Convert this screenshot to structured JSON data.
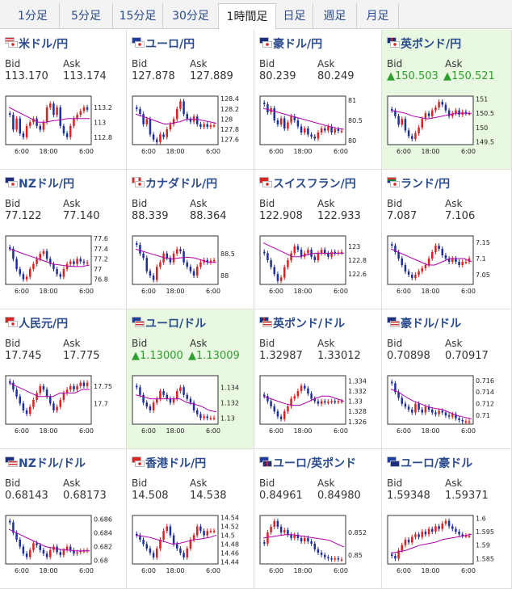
{
  "tabs": [
    {
      "label": "1分足",
      "active": false
    },
    {
      "label": "5分足",
      "active": false
    },
    {
      "label": "15分足",
      "active": false
    },
    {
      "label": "30分足",
      "active": false
    },
    {
      "label": "1時間足",
      "active": true
    },
    {
      "label": "日足",
      "active": false
    },
    {
      "label": "週足",
      "active": false
    },
    {
      "label": "月足",
      "active": false
    }
  ],
  "labels": {
    "bid": "Bid",
    "ask": "Ask"
  },
  "x_labels": [
    "6:00",
    "18:00",
    "6:00"
  ],
  "colors": {
    "up": "#e02020",
    "down": "#1f2f9f",
    "ma": "#b000b0",
    "highlight": "#e9f9e1",
    "link": "#2a4b8d",
    "rise": "#2e9e2e"
  },
  "cells": [
    {
      "pair": "米ドル/円",
      "flags": [
        "us",
        "jp"
      ],
      "bid": "113.170",
      "ask": "113.174",
      "up": false,
      "highlight": false,
      "chart_data": {
        "type": "candlestick",
        "y_ticks": [
          "113.2",
          "113",
          "112.8"
        ],
        "y_range": [
          112.7,
          113.35
        ],
        "closes": [
          113.1,
          112.9,
          113.05,
          112.85,
          112.8,
          112.95,
          113.0,
          113.05,
          112.95,
          112.9,
          113.0,
          113.2,
          113.25,
          113.1,
          113.2,
          112.95,
          112.85,
          112.8,
          112.95,
          113.05,
          113.1,
          113.15,
          113.2,
          113.17
        ],
        "ma": [
          113.2,
          113.15,
          113.1,
          113.05,
          113.0,
          113.0,
          113.02,
          113.03,
          113.05,
          113.05,
          113.05,
          113.05
        ]
      }
    },
    {
      "pair": "ユーロ/円",
      "flags": [
        "eu",
        "jp"
      ],
      "bid": "127.878",
      "ask": "127.889",
      "up": false,
      "highlight": false,
      "chart_data": {
        "type": "candlestick",
        "y_ticks": [
          "128.4",
          "128.2",
          "128",
          "127.8",
          "127.6"
        ],
        "y_range": [
          127.5,
          128.45
        ],
        "closes": [
          128.2,
          128.1,
          127.9,
          128.0,
          127.7,
          127.6,
          127.55,
          127.7,
          127.65,
          127.8,
          127.9,
          128.0,
          128.2,
          128.35,
          128.1,
          128.0,
          127.95,
          128.05,
          127.9,
          127.85,
          127.9,
          127.85,
          127.88,
          127.88
        ],
        "ma": [
          128.1,
          128.05,
          128.0,
          127.95,
          127.9,
          127.92,
          127.95,
          128.0,
          128.0,
          127.98,
          127.95,
          127.92
        ]
      }
    },
    {
      "pair": "豪ドル/円",
      "flags": [
        "au",
        "jp"
      ],
      "bid": "80.239",
      "ask": "80.249",
      "up": false,
      "highlight": false,
      "chart_data": {
        "type": "candlestick",
        "y_ticks": [
          "81",
          "80.5",
          "80"
        ],
        "y_range": [
          79.9,
          81.1
        ],
        "closes": [
          80.9,
          80.7,
          80.8,
          80.5,
          80.4,
          80.55,
          80.3,
          80.45,
          80.6,
          80.5,
          80.35,
          80.2,
          80.3,
          80.15,
          80.1,
          80.05,
          80.2,
          80.3,
          80.25,
          80.35,
          80.2,
          80.28,
          80.24,
          80.24
        ],
        "ma": [
          80.8,
          80.75,
          80.7,
          80.65,
          80.6,
          80.55,
          80.5,
          80.45,
          80.4,
          80.35,
          80.3,
          80.28
        ]
      }
    },
    {
      "pair": "英ポンド/円",
      "flags": [
        "gb",
        "jp"
      ],
      "bid": "▲150.503",
      "ask": "▲150.521",
      "up": true,
      "highlight": true,
      "chart_data": {
        "type": "candlestick",
        "y_ticks": [
          "151",
          "150.5",
          "150",
          "149.5"
        ],
        "y_range": [
          149.4,
          151.1
        ],
        "closes": [
          150.6,
          150.4,
          150.1,
          150.3,
          149.9,
          149.7,
          149.6,
          149.8,
          150.0,
          150.3,
          150.5,
          150.4,
          150.6,
          150.7,
          150.9,
          150.8,
          150.6,
          150.4,
          150.5,
          150.6,
          150.45,
          150.55,
          150.5,
          150.5
        ],
        "ma": [
          150.6,
          150.55,
          150.5,
          150.4,
          150.35,
          150.3,
          150.35,
          150.4,
          150.45,
          150.5,
          150.5,
          150.5
        ]
      }
    },
    {
      "pair": "NZドル/円",
      "flags": [
        "nz",
        "jp"
      ],
      "bid": "77.122",
      "ask": "77.140",
      "up": false,
      "highlight": false,
      "chart_data": {
        "type": "candlestick",
        "y_ticks": [
          "77.6",
          "77.4",
          "77.2",
          "77",
          "76.8"
        ],
        "y_range": [
          76.7,
          77.65
        ],
        "closes": [
          77.4,
          77.2,
          77.0,
          76.9,
          76.8,
          76.85,
          77.0,
          77.1,
          77.2,
          77.3,
          77.35,
          77.2,
          77.1,
          77.0,
          76.9,
          76.85,
          77.0,
          77.1,
          77.15,
          77.1,
          77.2,
          77.15,
          77.12,
          77.13
        ],
        "ma": [
          77.4,
          77.35,
          77.3,
          77.25,
          77.2,
          77.15,
          77.1,
          77.08,
          77.06,
          77.05,
          77.05,
          77.08
        ]
      }
    },
    {
      "pair": "カナダドル/円",
      "flags": [
        "ca",
        "jp"
      ],
      "bid": "88.339",
      "ask": "88.364",
      "up": false,
      "highlight": false,
      "chart_data": {
        "type": "candlestick",
        "y_ticks": [
          "88.5",
          "88"
        ],
        "y_range": [
          87.8,
          88.9
        ],
        "closes": [
          88.7,
          88.5,
          88.4,
          88.1,
          88.0,
          87.9,
          88.2,
          88.3,
          88.5,
          88.4,
          88.3,
          88.5,
          88.6,
          88.55,
          88.3,
          88.2,
          88.1,
          88.0,
          88.2,
          88.3,
          88.35,
          88.3,
          88.34,
          88.35
        ],
        "ma": [
          88.6,
          88.55,
          88.5,
          88.45,
          88.4,
          88.38,
          88.4,
          88.42,
          88.4,
          88.35,
          88.3,
          88.3
        ]
      }
    },
    {
      "pair": "スイスフラン/円",
      "flags": [
        "ch",
        "jp"
      ],
      "bid": "122.908",
      "ask": "122.933",
      "up": false,
      "highlight": false,
      "chart_data": {
        "type": "candlestick",
        "y_ticks": [
          "123",
          "122.8",
          "122.6"
        ],
        "y_range": [
          122.45,
          123.15
        ],
        "closes": [
          122.9,
          122.8,
          122.7,
          122.6,
          122.5,
          122.55,
          122.7,
          122.8,
          122.9,
          123.0,
          122.95,
          122.85,
          122.9,
          122.95,
          122.85,
          122.8,
          122.9,
          122.95,
          122.9,
          122.85,
          122.92,
          122.9,
          122.91,
          122.92
        ],
        "ma": [
          123.05,
          123.0,
          122.95,
          122.9,
          122.85,
          122.85,
          122.88,
          122.9,
          122.9,
          122.9,
          122.9,
          122.9
        ]
      }
    },
    {
      "pair": "ランド/円",
      "flags": [
        "za",
        "jp"
      ],
      "bid": "7.087",
      "ask": "7.106",
      "up": false,
      "highlight": false,
      "chart_data": {
        "type": "candlestick",
        "y_ticks": [
          "7.15",
          "7.1",
          "7.05"
        ],
        "y_range": [
          7.02,
          7.17
        ],
        "closes": [
          7.14,
          7.12,
          7.1,
          7.08,
          7.06,
          7.05,
          7.04,
          7.05,
          7.06,
          7.07,
          7.08,
          7.1,
          7.12,
          7.14,
          7.13,
          7.11,
          7.1,
          7.09,
          7.1,
          7.09,
          7.08,
          7.09,
          7.09,
          7.1
        ],
        "ma": [
          7.13,
          7.12,
          7.11,
          7.1,
          7.09,
          7.08,
          7.08,
          7.09,
          7.1,
          7.1,
          7.1,
          7.09
        ]
      }
    },
    {
      "pair": "人民元/円",
      "flags": [
        "cn",
        "jp"
      ],
      "bid": "17.745",
      "ask": "17.775",
      "up": false,
      "highlight": false,
      "chart_data": {
        "type": "candlestick",
        "y_ticks": [
          "17.75",
          "17.7"
        ],
        "y_range": [
          17.64,
          17.78
        ],
        "closes": [
          17.76,
          17.74,
          17.72,
          17.7,
          17.68,
          17.67,
          17.69,
          17.71,
          17.73,
          17.75,
          17.74,
          17.72,
          17.7,
          17.68,
          17.69,
          17.71,
          17.73,
          17.74,
          17.75,
          17.74,
          17.75,
          17.76,
          17.75,
          17.76
        ],
        "ma": [
          17.76,
          17.75,
          17.74,
          17.73,
          17.72,
          17.72,
          17.72,
          17.73,
          17.73,
          17.73,
          17.74,
          17.74
        ]
      }
    },
    {
      "pair": "ユーロ/ドル",
      "flags": [
        "eu",
        "us"
      ],
      "bid": "▲1.13000",
      "ask": "▲1.13009",
      "up": true,
      "highlight": true,
      "chart_data": {
        "type": "candlestick",
        "y_ticks": [
          "1.134",
          "1.132",
          "1.13"
        ],
        "y_range": [
          1.1292,
          1.1355
        ],
        "closes": [
          1.134,
          1.133,
          1.132,
          1.1315,
          1.131,
          1.132,
          1.1325,
          1.1335,
          1.133,
          1.1325,
          1.132,
          1.1325,
          1.1335,
          1.134,
          1.133,
          1.1325,
          1.132,
          1.131,
          1.1305,
          1.13,
          1.1302,
          1.13,
          1.13,
          1.13
        ],
        "ma": [
          1.133,
          1.1328,
          1.1325,
          1.1325,
          1.1325,
          1.1325,
          1.1325,
          1.132,
          1.1318,
          1.1315,
          1.131,
          1.1308
        ]
      }
    },
    {
      "pair": "英ポンド/ドル",
      "flags": [
        "gb",
        "us"
      ],
      "bid": "1.32987",
      "ask": "1.33012",
      "up": false,
      "highlight": false,
      "chart_data": {
        "type": "candlestick",
        "y_ticks": [
          "1.334",
          "1.332",
          "1.33",
          "1.328",
          "1.326"
        ],
        "y_range": [
          1.3255,
          1.335
        ],
        "closes": [
          1.331,
          1.33,
          1.329,
          1.328,
          1.327,
          1.3265,
          1.328,
          1.329,
          1.3305,
          1.331,
          1.332,
          1.333,
          1.3325,
          1.3315,
          1.3305,
          1.33,
          1.3295,
          1.33,
          1.3298,
          1.3299,
          1.33,
          1.3299,
          1.33,
          1.33
        ],
        "ma": [
          1.331,
          1.3305,
          1.33,
          1.3295,
          1.3292,
          1.3292,
          1.3298,
          1.3305,
          1.331,
          1.331,
          1.3305,
          1.33
        ]
      }
    },
    {
      "pair": "豪ドル/ドル",
      "flags": [
        "au",
        "us"
      ],
      "bid": "0.70898",
      "ask": "0.70917",
      "up": false,
      "highlight": false,
      "chart_data": {
        "type": "candlestick",
        "y_ticks": [
          "0.716",
          "0.714",
          "0.712",
          "0.71"
        ],
        "y_range": [
          0.7085,
          0.7168
        ],
        "closes": [
          0.7155,
          0.714,
          0.713,
          0.712,
          0.7115,
          0.711,
          0.7105,
          0.712,
          0.711,
          0.7105,
          0.7115,
          0.711,
          0.7105,
          0.7102,
          0.7108,
          0.7105,
          0.71,
          0.7098,
          0.7102,
          0.7095,
          0.7092,
          0.709,
          0.709,
          0.709
        ],
        "ma": [
          0.7145,
          0.714,
          0.7132,
          0.7125,
          0.712,
          0.7115,
          0.7112,
          0.711,
          0.7105,
          0.71,
          0.7097,
          0.7094
        ]
      }
    },
    {
      "pair": "NZドル/ドル",
      "flags": [
        "nz",
        "us"
      ],
      "bid": "0.68143",
      "ask": "0.68173",
      "up": false,
      "highlight": false,
      "chart_data": {
        "type": "candlestick",
        "y_ticks": [
          "0.686",
          "0.684",
          "0.682",
          "0.68"
        ],
        "y_range": [
          0.6795,
          0.6865
        ],
        "closes": [
          0.6855,
          0.684,
          0.683,
          0.682,
          0.681,
          0.6805,
          0.6815,
          0.6825,
          0.6822,
          0.6815,
          0.681,
          0.6805,
          0.6815,
          0.682,
          0.6812,
          0.6808,
          0.6815,
          0.682,
          0.6815,
          0.681,
          0.6812,
          0.6814,
          0.6814,
          0.6815
        ],
        "ma": [
          0.6845,
          0.684,
          0.6835,
          0.683,
          0.6825,
          0.682,
          0.6818,
          0.6816,
          0.6815,
          0.6814,
          0.6814,
          0.6814
        ]
      }
    },
    {
      "pair": "香港ドル/円",
      "flags": [
        "hk",
        "jp"
      ],
      "bid": "14.508",
      "ask": "14.538",
      "up": false,
      "highlight": false,
      "chart_data": {
        "type": "candlestick",
        "y_ticks": [
          "14.54",
          "14.52",
          "14.5",
          "14.48",
          "14.46",
          "14.44"
        ],
        "y_range": [
          14.435,
          14.545
        ],
        "closes": [
          14.5,
          14.49,
          14.48,
          14.47,
          14.46,
          14.45,
          14.47,
          14.49,
          14.51,
          14.52,
          14.5,
          14.48,
          14.47,
          14.46,
          14.45,
          14.47,
          14.49,
          14.5,
          14.52,
          14.51,
          14.5,
          14.51,
          14.51,
          14.51
        ],
        "ma": [
          14.5,
          14.498,
          14.495,
          14.49,
          14.485,
          14.48,
          14.482,
          14.486,
          14.49,
          14.492,
          14.495,
          14.5
        ]
      }
    },
    {
      "pair": "ユーロ/英ポンド",
      "flags": [
        "eu",
        "gb"
      ],
      "bid": "0.84961",
      "ask": "0.84980",
      "up": false,
      "highlight": false,
      "chart_data": {
        "type": "candlestick",
        "y_ticks": [
          "0.852",
          "0.85"
        ],
        "y_range": [
          0.8492,
          0.8535
        ],
        "closes": [
          0.851,
          0.852,
          0.8525,
          0.853,
          0.8525,
          0.852,
          0.8522,
          0.8518,
          0.8515,
          0.8518,
          0.8515,
          0.8512,
          0.8515,
          0.8512,
          0.851,
          0.8505,
          0.8502,
          0.85,
          0.8498,
          0.8497,
          0.8496,
          0.8497,
          0.8496,
          0.8496
        ],
        "ma": [
          0.8515,
          0.8516,
          0.8517,
          0.8518,
          0.8518,
          0.8517,
          0.8516,
          0.8515,
          0.8514,
          0.8513,
          0.851,
          0.8507
        ]
      }
    },
    {
      "pair": "ユーロ/豪ドル",
      "flags": [
        "eu",
        "au"
      ],
      "bid": "1.59348",
      "ask": "1.59371",
      "up": false,
      "highlight": false,
      "chart_data": {
        "type": "candlestick",
        "y_ticks": [
          "1.6",
          "1.595",
          "1.59",
          "1.585"
        ],
        "y_range": [
          1.583,
          1.601
        ],
        "closes": [
          1.586,
          1.585,
          1.588,
          1.59,
          1.592,
          1.591,
          1.593,
          1.594,
          1.593,
          1.595,
          1.594,
          1.596,
          1.595,
          1.597,
          1.596,
          1.598,
          1.599,
          1.597,
          1.596,
          1.595,
          1.594,
          1.5935,
          1.5935,
          1.5935
        ],
        "ma": [
          1.587,
          1.5875,
          1.588,
          1.589,
          1.59,
          1.5905,
          1.591,
          1.592,
          1.5925,
          1.593,
          1.5935,
          1.594
        ]
      }
    }
  ]
}
